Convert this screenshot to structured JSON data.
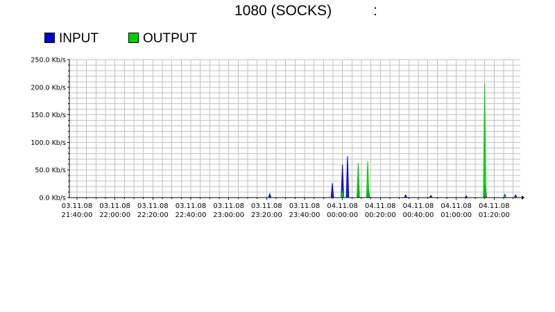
{
  "title": {
    "main": "1080 (SOCKS)",
    "suffix": ":"
  },
  "colors": {
    "input": "#0000cc",
    "output": "#00cc00",
    "grid": "#c0c0c0",
    "axis": "#000000"
  },
  "chart_data": {
    "type": "area",
    "title": "1080 (SOCKS)",
    "yunit": "Kb/s",
    "ylim": [
      0,
      250
    ],
    "yticks": [
      "0.0 Kb/s",
      "50.0 Kb/s",
      "100.0 Kb/s",
      "150.0 Kb/s",
      "200.0 Kb/s",
      "250.0 Kb/s"
    ],
    "xticks": [
      {
        "date": "03.11.08",
        "time": "21:40:00"
      },
      {
        "date": "03.11.08",
        "time": "22:00:00"
      },
      {
        "date": "03.11.08",
        "time": "22:20:00"
      },
      {
        "date": "03.11.08",
        "time": "22:40:00"
      },
      {
        "date": "03.11.08",
        "time": "23:00:00"
      },
      {
        "date": "03.11.08",
        "time": "23:20:00"
      },
      {
        "date": "03.11.08",
        "time": "23:40:00"
      },
      {
        "date": "04.11.08",
        "time": "00:00:00"
      },
      {
        "date": "04.11.08",
        "time": "00:20:00"
      },
      {
        "date": "04.11.08",
        "time": "00:40:00"
      },
      {
        "date": "04.11.08",
        "time": "01:00:00"
      },
      {
        "date": "04.11.08",
        "time": "01:20:00"
      }
    ],
    "grid": true,
    "legend_position": "top-left",
    "series": [
      {
        "name": "INPUT",
        "color": "#0000cc",
        "points": [
          [
            "03.11.08 21:40:00",
            0
          ],
          [
            "03.11.08 23:21:00",
            0
          ],
          [
            "03.11.08 23:21:40",
            7
          ],
          [
            "03.11.08 23:22:20",
            0
          ],
          [
            "03.11.08 23:54:00",
            0
          ],
          [
            "03.11.08 23:54:40",
            26
          ],
          [
            "03.11.08 23:55:20",
            0
          ],
          [
            "03.11.08 23:59:20",
            0
          ],
          [
            "04.11.08 00:00:00",
            60
          ],
          [
            "04.11.08 00:00:40",
            0
          ],
          [
            "04.11.08 00:02:00",
            0
          ],
          [
            "04.11.08 00:02:40",
            75
          ],
          [
            "04.11.08 00:03:20",
            0
          ],
          [
            "04.11.08 00:07:40",
            0
          ],
          [
            "04.11.08 00:08:20",
            36
          ],
          [
            "04.11.08 00:09:00",
            0
          ],
          [
            "04.11.08 00:13:00",
            0
          ],
          [
            "04.11.08 00:13:40",
            20
          ],
          [
            "04.11.08 00:14:20",
            0
          ],
          [
            "04.11.08 00:32:40",
            0
          ],
          [
            "04.11.08 00:33:20",
            5
          ],
          [
            "04.11.08 00:34:00",
            0
          ],
          [
            "04.11.08 00:46:00",
            0
          ],
          [
            "04.11.08 00:46:40",
            4
          ],
          [
            "04.11.08 00:47:20",
            0
          ],
          [
            "04.11.08 01:04:40",
            0
          ],
          [
            "04.11.08 01:05:20",
            3
          ],
          [
            "04.11.08 01:06:00",
            0
          ],
          [
            "04.11.08 01:14:40",
            0
          ],
          [
            "04.11.08 01:15:20",
            25
          ],
          [
            "04.11.08 01:16:00",
            0
          ],
          [
            "04.11.08 01:25:00",
            0
          ],
          [
            "04.11.08 01:25:40",
            6
          ],
          [
            "04.11.08 01:26:20",
            0
          ],
          [
            "04.11.08 01:30:40",
            0
          ],
          [
            "04.11.08 01:31:20",
            5
          ],
          [
            "04.11.08 01:32:00",
            0
          ]
        ]
      },
      {
        "name": "OUTPUT",
        "color": "#00cc00",
        "points": [
          [
            "03.11.08 21:40:00",
            0
          ],
          [
            "03.11.08 23:59:20",
            0
          ],
          [
            "04.11.08 00:00:00",
            12
          ],
          [
            "04.11.08 00:00:40",
            0
          ],
          [
            "04.11.08 00:07:40",
            0
          ],
          [
            "04.11.08 00:08:20",
            63
          ],
          [
            "04.11.08 00:09:00",
            0
          ],
          [
            "04.11.08 00:12:40",
            0
          ],
          [
            "04.11.08 00:13:20",
            66
          ],
          [
            "04.11.08 00:14:00",
            0
          ],
          [
            "04.11.08 01:14:20",
            0
          ],
          [
            "04.11.08 01:15:00",
            208
          ],
          [
            "04.11.08 01:15:40",
            0
          ],
          [
            "04.11.08 01:25:00",
            0
          ],
          [
            "04.11.08 01:25:40",
            4
          ],
          [
            "04.11.08 01:26:20",
            0
          ]
        ]
      }
    ]
  }
}
